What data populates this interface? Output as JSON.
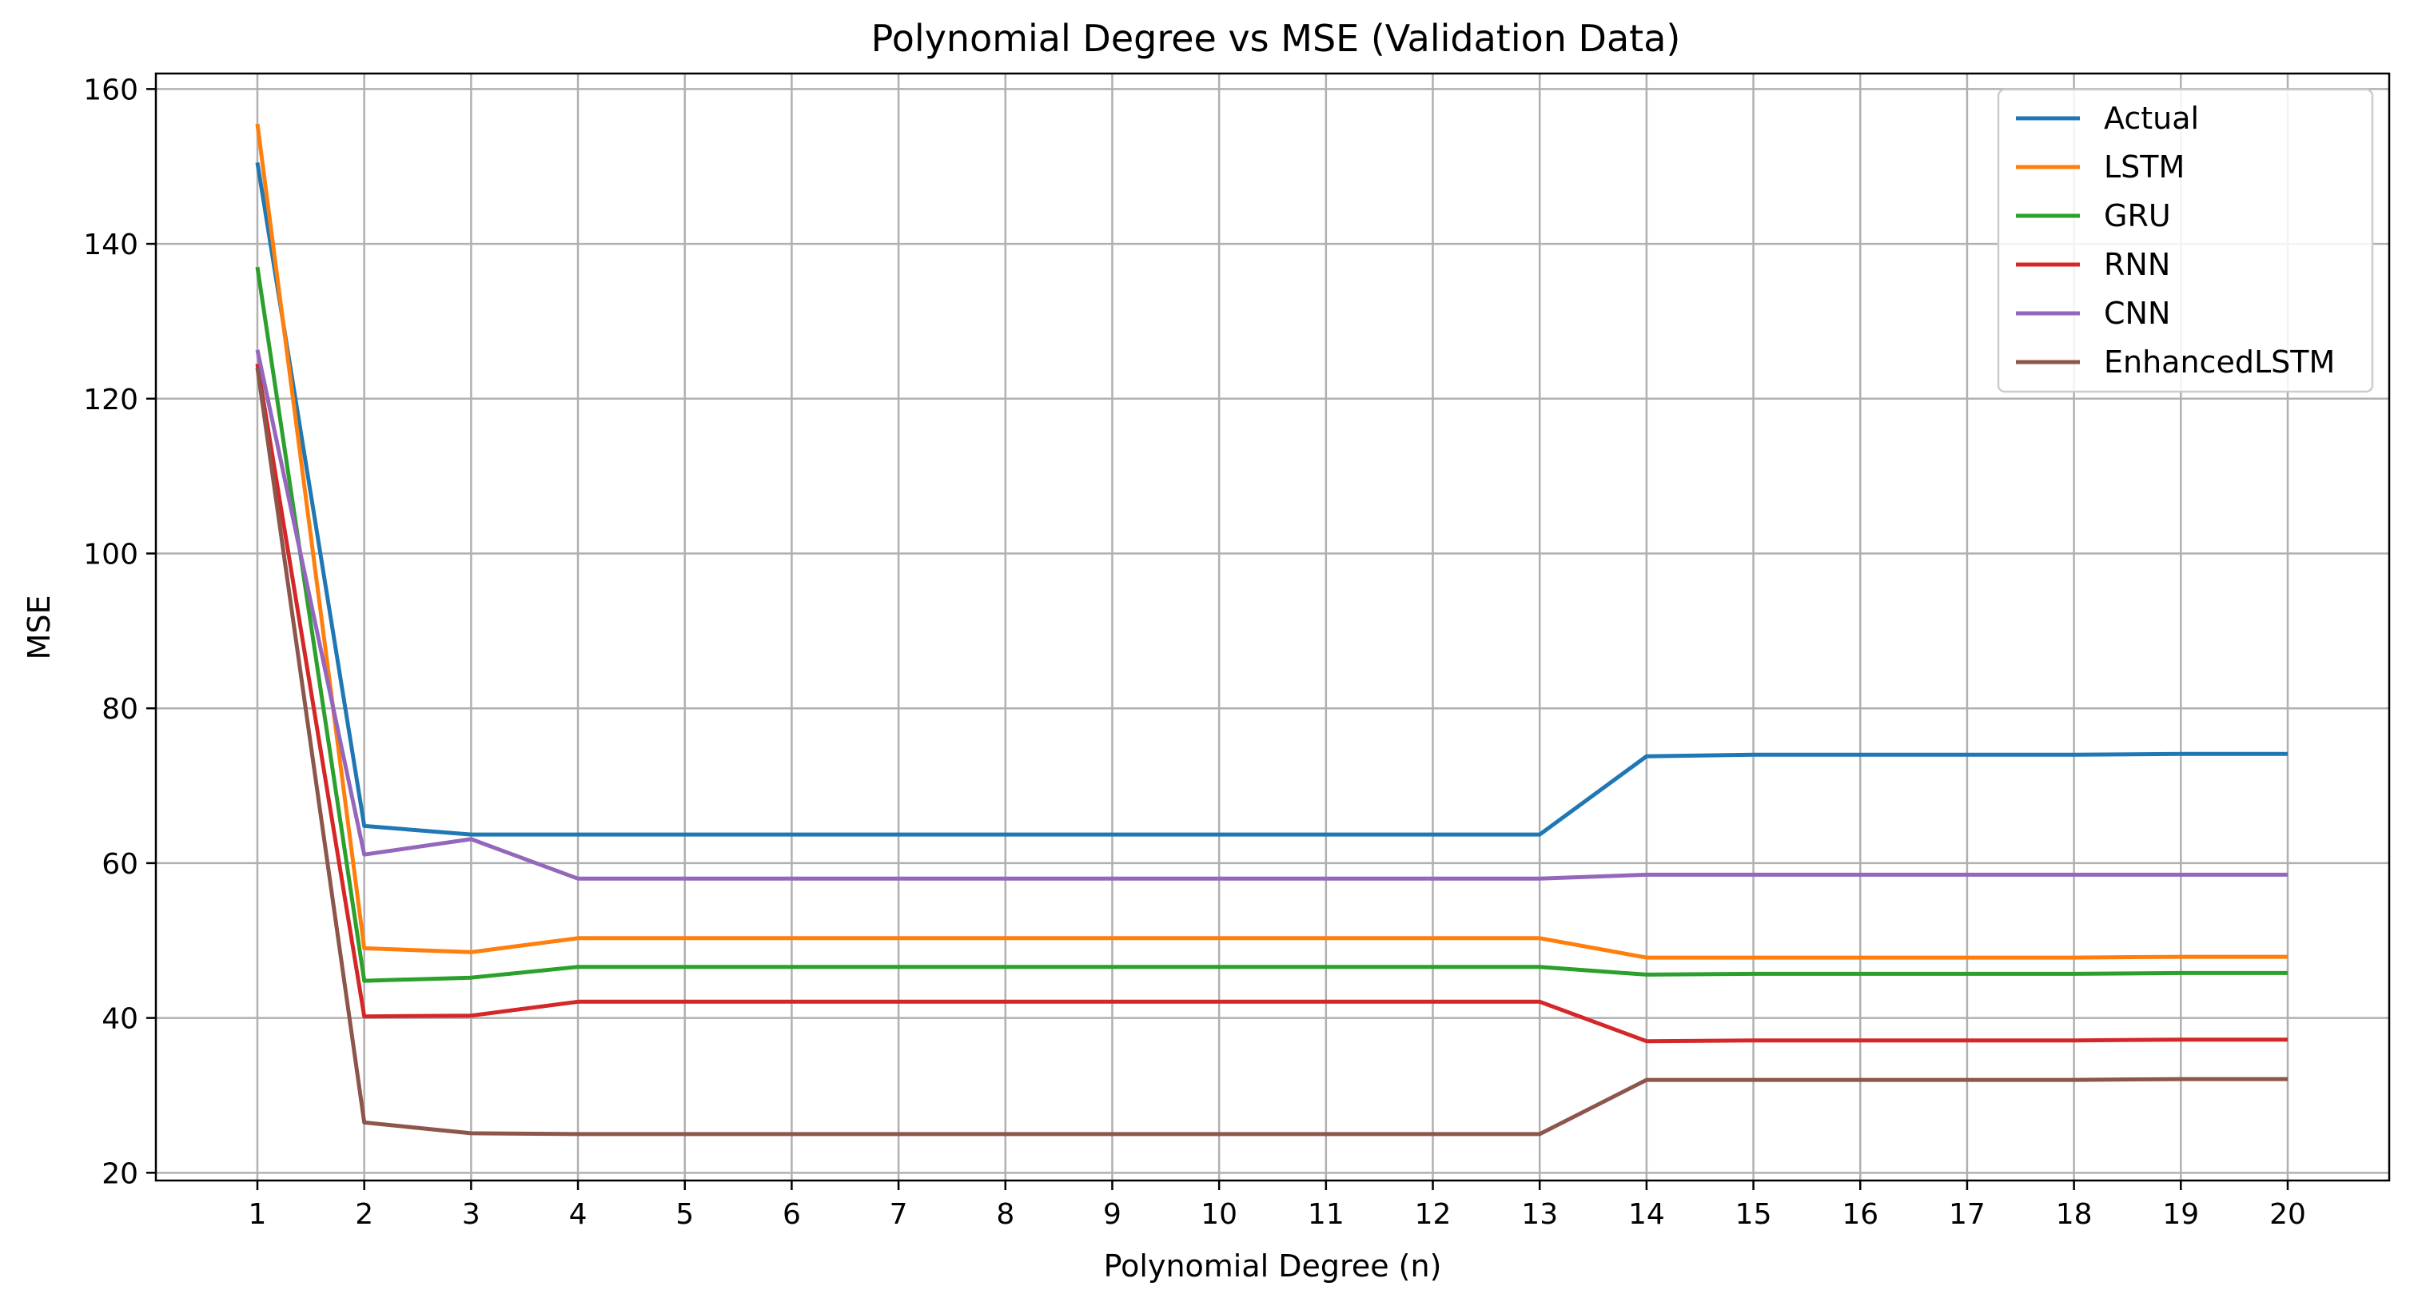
{
  "chart_data": {
    "type": "line",
    "title": "Polynomial Degree vs MSE (Validation Data)",
    "xlabel": "Polynomial Degree (n)",
    "ylabel": "MSE",
    "x": [
      1,
      2,
      3,
      4,
      5,
      6,
      7,
      8,
      9,
      10,
      11,
      12,
      13,
      14,
      15,
      16,
      17,
      18,
      19,
      20
    ],
    "xlim": [
      0.05,
      20.95
    ],
    "ylim": [
      19,
      162
    ],
    "xticks": [
      1,
      2,
      3,
      4,
      5,
      6,
      7,
      8,
      9,
      10,
      11,
      12,
      13,
      14,
      15,
      16,
      17,
      18,
      19,
      20
    ],
    "yticks": [
      20,
      40,
      60,
      80,
      100,
      120,
      140,
      160
    ],
    "grid": true,
    "legend_position": "top-right",
    "series": [
      {
        "name": "Actual",
        "color": "#1f77b4",
        "values": [
          150.5,
          64.8,
          63.7,
          63.7,
          63.7,
          63.7,
          63.7,
          63.7,
          63.7,
          63.7,
          63.7,
          63.7,
          63.7,
          73.8,
          74.0,
          74.0,
          74.0,
          74.0,
          74.1,
          74.1
        ]
      },
      {
        "name": "LSTM",
        "color": "#ff7f0e",
        "values": [
          155.5,
          49.0,
          48.5,
          50.3,
          50.3,
          50.3,
          50.3,
          50.3,
          50.3,
          50.3,
          50.3,
          50.3,
          50.3,
          47.8,
          47.8,
          47.8,
          47.8,
          47.8,
          47.9,
          47.9
        ]
      },
      {
        "name": "GRU",
        "color": "#2ca02c",
        "values": [
          137.0,
          44.8,
          45.2,
          46.6,
          46.6,
          46.6,
          46.6,
          46.6,
          46.6,
          46.6,
          46.6,
          46.6,
          46.6,
          45.6,
          45.7,
          45.7,
          45.7,
          45.7,
          45.8,
          45.8
        ]
      },
      {
        "name": "RNN",
        "color": "#d62728",
        "values": [
          124.5,
          40.2,
          40.3,
          42.1,
          42.1,
          42.1,
          42.1,
          42.1,
          42.1,
          42.1,
          42.1,
          42.1,
          42.1,
          37.0,
          37.1,
          37.1,
          37.1,
          37.1,
          37.2,
          37.2
        ]
      },
      {
        "name": "CNN",
        "color": "#9467bd",
        "values": [
          126.3,
          61.1,
          63.1,
          58.0,
          58.0,
          58.0,
          58.0,
          58.0,
          58.0,
          58.0,
          58.0,
          58.0,
          58.0,
          58.5,
          58.5,
          58.5,
          58.5,
          58.5,
          58.5,
          58.5
        ]
      },
      {
        "name": "EnhancedLSTM",
        "color": "#8c564b",
        "values": [
          124.0,
          26.5,
          25.1,
          25.0,
          25.0,
          25.0,
          25.0,
          25.0,
          25.0,
          25.0,
          25.0,
          25.0,
          25.0,
          32.0,
          32.0,
          32.0,
          32.0,
          32.0,
          32.1,
          32.1
        ]
      }
    ]
  }
}
